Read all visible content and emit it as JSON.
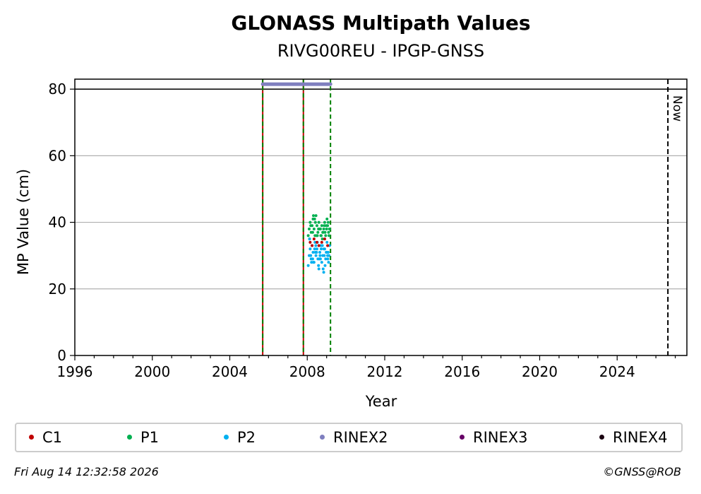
{
  "chart_data": {
    "type": "scatter",
    "title": "GLONASS Multipath Values",
    "subtitle": "RIVG00REU - IPGP-GNSS",
    "xlabel": "Year",
    "ylabel": "MP Value (cm)",
    "xlim": [
      1996,
      2027.6
    ],
    "ylim": [
      0,
      83
    ],
    "xticks": [
      1996,
      2000,
      2004,
      2008,
      2012,
      2016,
      2020,
      2024
    ],
    "yticks": [
      0,
      20,
      40,
      60,
      80
    ],
    "grid": "horizontal",
    "legend_position": "bottom",
    "series": [
      {
        "name": "C1",
        "color": "#c00000",
        "x": [
          2008.15,
          2008.25,
          2008.35,
          2008.5,
          2008.6,
          2008.75,
          2008.9,
          2009.05
        ],
        "y": [
          34,
          33,
          35,
          34,
          33,
          34,
          35,
          33
        ]
      },
      {
        "name": "P1",
        "color": "#00b050",
        "x": [
          2008.05,
          2008.1,
          2008.15,
          2008.2,
          2008.25,
          2008.3,
          2008.35,
          2008.4,
          2008.45,
          2008.5,
          2008.55,
          2008.6,
          2008.65,
          2008.7,
          2008.75,
          2008.8,
          2008.85,
          2008.9,
          2008.95,
          2009.0,
          2009.05,
          2009.1,
          2009.15,
          2008.12,
          2008.28,
          2008.42,
          2008.58,
          2008.72,
          2008.88,
          2009.02,
          2008.32,
          2008.48,
          2008.62,
          2008.78,
          2008.92,
          2009.08,
          2008.18,
          2008.38,
          2008.52,
          2008.68,
          2008.82,
          2008.98,
          2009.12
        ],
        "y": [
          36,
          38,
          40,
          37,
          39,
          41,
          38,
          36,
          42,
          39,
          37,
          40,
          38,
          36,
          39,
          37,
          38,
          40,
          36,
          38,
          39,
          37,
          38,
          35,
          37,
          40,
          38,
          36,
          39,
          41,
          42,
          36,
          38,
          35,
          37,
          40,
          39,
          41,
          36,
          38,
          37,
          39,
          36
        ]
      },
      {
        "name": "P2",
        "color": "#00b0f0",
        "x": [
          2008.05,
          2008.1,
          2008.15,
          2008.2,
          2008.25,
          2008.3,
          2008.35,
          2008.4,
          2008.45,
          2008.5,
          2008.55,
          2008.6,
          2008.65,
          2008.7,
          2008.75,
          2008.8,
          2008.85,
          2008.9,
          2008.95,
          2009.0,
          2009.05,
          2009.1,
          2009.15,
          2008.12,
          2008.28,
          2008.42,
          2008.58,
          2008.72,
          2008.88,
          2009.02,
          2008.32,
          2008.48,
          2008.62,
          2008.78,
          2008.92,
          2009.08,
          2008.18,
          2008.38,
          2008.52,
          2008.68,
          2008.82,
          2008.98,
          2009.12,
          2008.22,
          2008.44,
          2008.66,
          2008.86,
          2009.06
        ],
        "y": [
          27,
          30,
          32,
          29,
          33,
          31,
          28,
          34,
          30,
          32,
          29,
          26,
          31,
          33,
          28,
          30,
          25,
          32,
          29,
          31,
          30,
          28,
          33,
          35,
          29,
          31,
          27,
          32,
          30,
          34,
          28,
          31,
          29,
          33,
          27,
          31,
          30,
          32,
          34,
          29,
          26,
          31,
          30,
          28,
          33,
          30,
          32,
          29
        ]
      },
      {
        "name": "RINEX2",
        "color": "#7f7fbf",
        "segment": [
          2005.7,
          2009.2
        ],
        "y": 81.5
      },
      {
        "name": "RINEX3",
        "color": "#660066"
      },
      {
        "name": "RINEX4",
        "color": "#1a0010"
      }
    ],
    "vertical_lines": [
      {
        "x": 2005.7,
        "style": "red-green-dashed"
      },
      {
        "x": 2007.8,
        "style": "red-green-dashed"
      },
      {
        "x": 2009.2,
        "style": "green-dashed"
      },
      {
        "x": 2026.62,
        "style": "black-dashed",
        "label": "Now"
      }
    ],
    "hline": 80
  },
  "footer": {
    "date": "Fri Aug 14 12:32:58 2026",
    "copyright": "©GNSS@ROB"
  }
}
